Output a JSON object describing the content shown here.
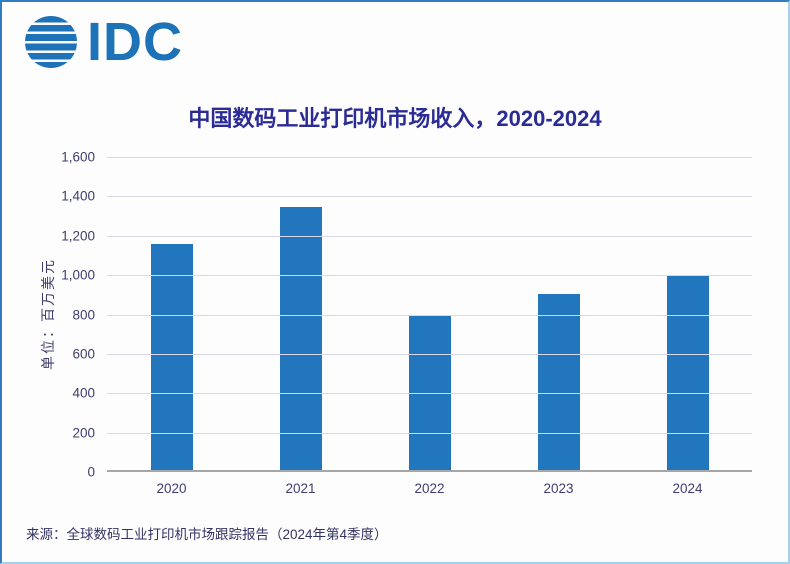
{
  "logo": {
    "brand": "IDC",
    "icon": "striped-globe-icon"
  },
  "source": "来源：全球数码工业打印机市场跟踪报告（2024年第4季度）",
  "colors": {
    "bar": "#2176BE",
    "title": "#2B2B96",
    "axis_text": "#3E3E6E",
    "gridline": "#D8D8E8",
    "baseline": "#A6A6A6",
    "logo": "#1D72B8",
    "border_dark": "#2F7CC0",
    "border_light": "#A5CFEC"
  },
  "chart_data": {
    "type": "bar",
    "title": "中国数码工业打印机市场收入，2020-2024",
    "categories": [
      "2020",
      "2021",
      "2022",
      "2023",
      "2024"
    ],
    "values": [
      1160,
      1345,
      790,
      905,
      1000
    ],
    "xlabel": "",
    "ylabel": "单位：百万美元",
    "ylim": [
      0,
      1600
    ],
    "ytick_step": 200,
    "ytick_labels": [
      "0",
      "200",
      "400",
      "600",
      "800",
      "1,000",
      "1,200",
      "1,400",
      "1,600"
    ],
    "grid": true,
    "legend": "none",
    "bar_color": "#2176BE"
  }
}
